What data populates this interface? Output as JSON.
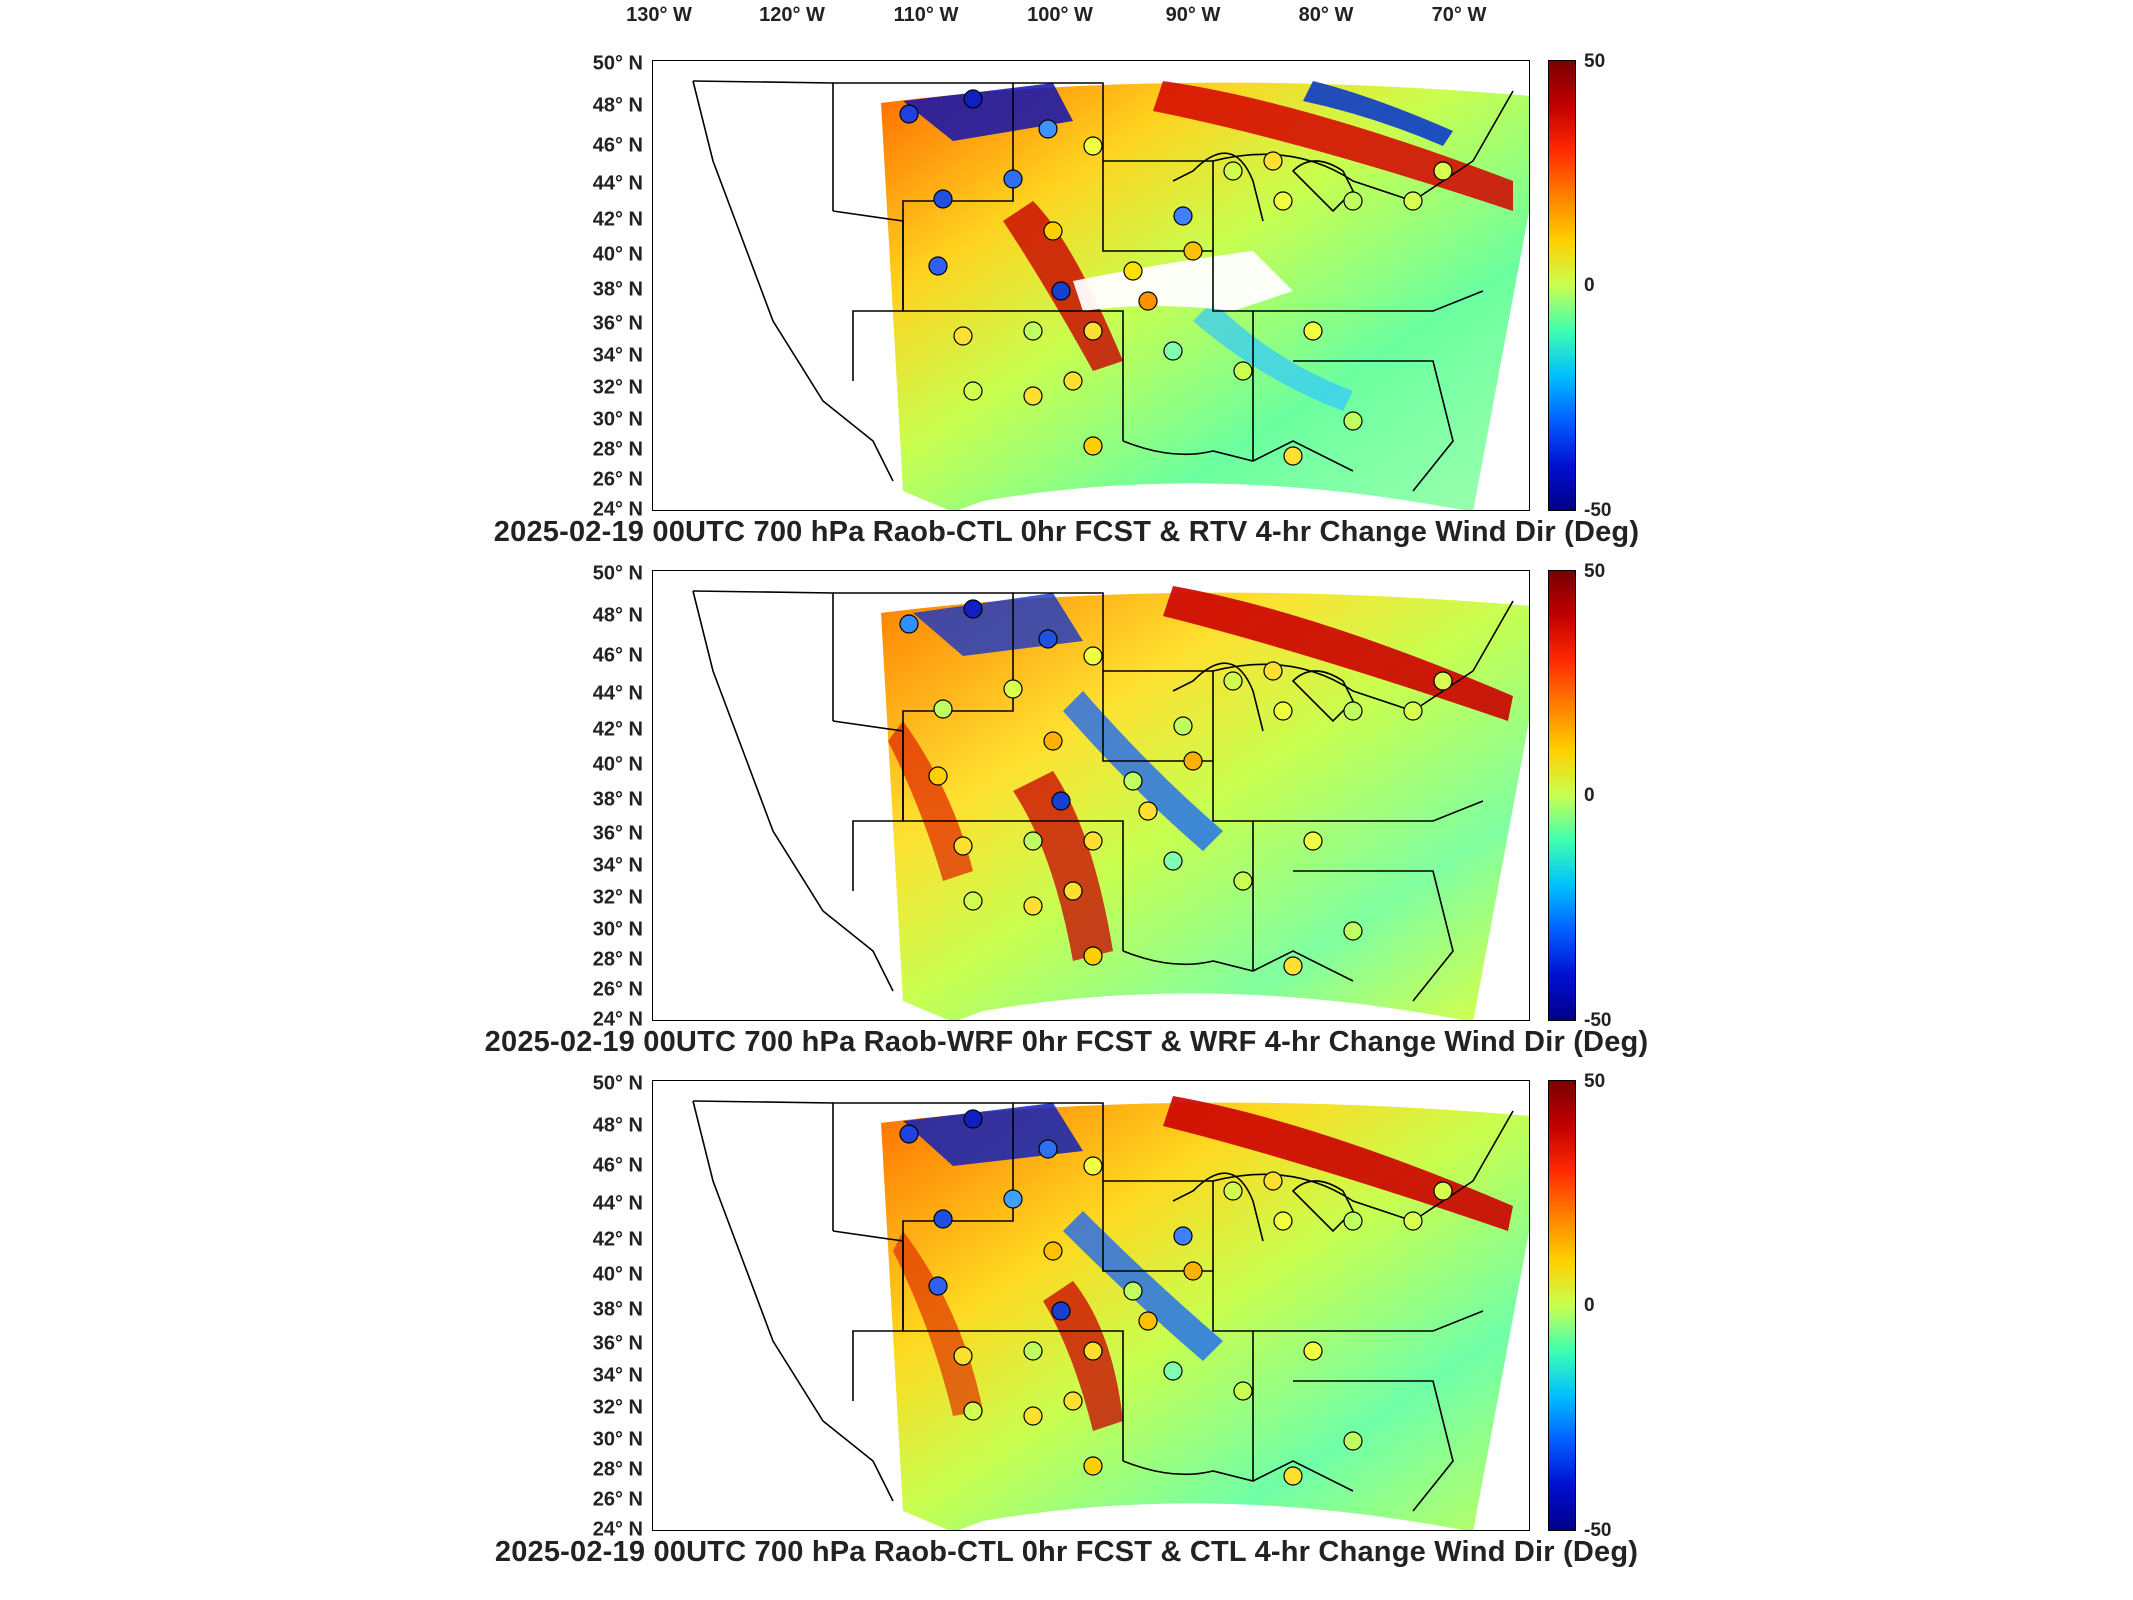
{
  "longitude_labels": [
    "130° W",
    "120° W",
    "110° W",
    "100° W",
    "90° W",
    "80° W",
    "70° W"
  ],
  "latitude_labels": [
    "50° N",
    "48° N",
    "46° N",
    "44° N",
    "42° N",
    "40° N",
    "38° N",
    "36° N",
    "34° N",
    "32° N",
    "30° N",
    "28° N",
    "26° N",
    "24° N"
  ],
  "colorbar": {
    "max_label": "50",
    "mid_label": "0",
    "min_label": "-50"
  },
  "panels": [
    {
      "title": "2025-02-19 00UTC 700 hPa Raob-CTL 0hr FCST & RTV 4-hr Change Wind Dir (Deg)"
    },
    {
      "title": "2025-02-19 00UTC 700 hPa Raob-WRF 0hr FCST & WRF 4-hr Change Wind Dir (Deg)"
    },
    {
      "title": "2025-02-19 00UTC 700 hPa Raob-CTL 0hr FCST & CTL 4-hr Change Wind Dir (Deg)"
    }
  ],
  "colors": {
    "high": "#7a0000",
    "mid": "#c8ff50",
    "low": "#00008a"
  }
}
